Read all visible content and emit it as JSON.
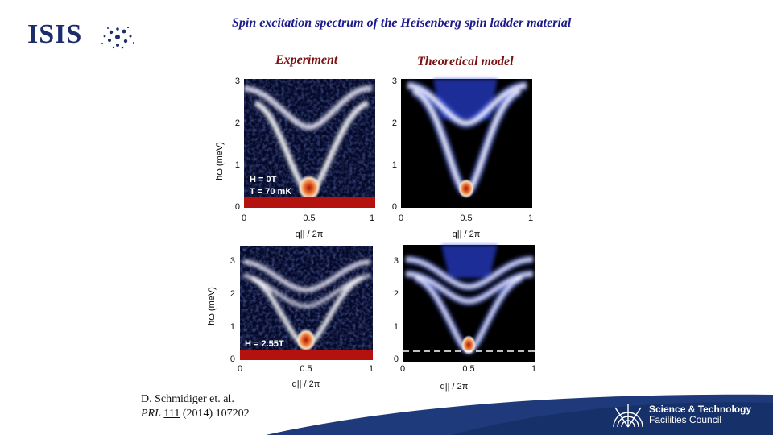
{
  "logo": {
    "text": "ISIS"
  },
  "slide": {
    "title": "Spin excitation spectrum of the Heisenberg spin ladder material",
    "experiment_label": "Experiment",
    "theory_label": "Theoretical model"
  },
  "axes": {
    "y_label": "ħω (meV)",
    "x_label": "q|| / 2π",
    "y_ticks_top": [
      "0",
      "1",
      "2",
      "3"
    ],
    "y_ticks_bottom": [
      "0",
      "1",
      "2",
      "3"
    ],
    "x_ticks": [
      "0",
      "0.5",
      "1"
    ]
  },
  "panels": {
    "exp_top_annot_1": "H = 0T",
    "exp_top_annot_2": "T = 70 mK",
    "exp_bottom_annot": "H = 2.55T"
  },
  "citation": {
    "authors": "D. Schmidiger et. al.",
    "journal": "PRL",
    "volume": "111",
    "rest": "(2014) 107202"
  },
  "footer": {
    "org_line1": "Science & Technology",
    "org_line2": "Facilities Council"
  }
}
